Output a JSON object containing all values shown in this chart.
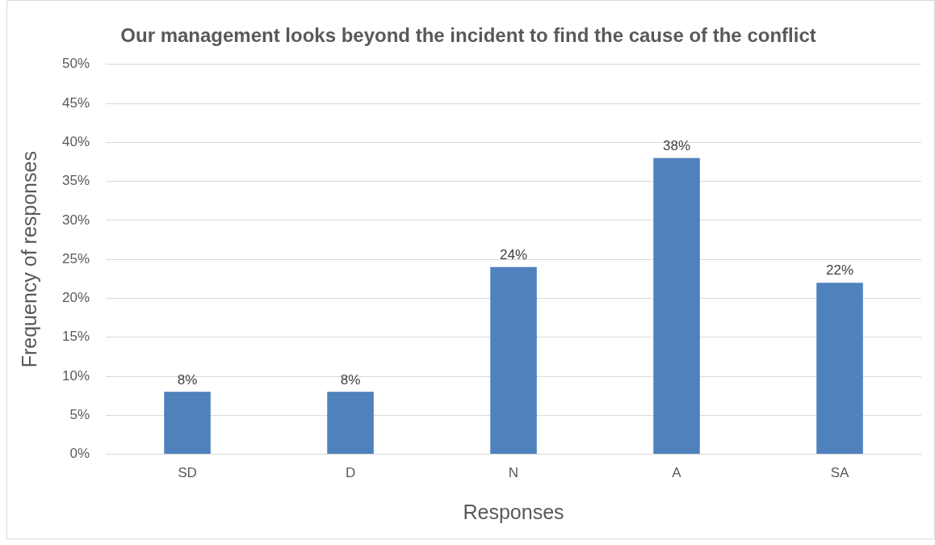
{
  "chart_data": {
    "type": "bar",
    "title": "Our management looks beyond the incident to find the cause of the conflict",
    "xlabel": "Responses",
    "ylabel": "Frequency of responses",
    "categories": [
      "SD",
      "D",
      "N",
      "A",
      "SA"
    ],
    "values": [
      8,
      8,
      24,
      38,
      22
    ],
    "value_labels": [
      "8%",
      "8%",
      "24%",
      "38%",
      "22%"
    ],
    "color": "#4f81bd",
    "ylim": [
      0,
      50
    ],
    "yticks": [
      {
        "value": 0,
        "label": "0%"
      },
      {
        "value": 5,
        "label": "5%"
      },
      {
        "value": 10,
        "label": "10%"
      },
      {
        "value": 15,
        "label": "15%"
      },
      {
        "value": 20,
        "label": "20%"
      },
      {
        "value": 25,
        "label": "25%"
      },
      {
        "value": 30,
        "label": "30%"
      },
      {
        "value": 35,
        "label": "35%"
      },
      {
        "value": 40,
        "label": "40%"
      },
      {
        "value": 45,
        "label": "45%"
      },
      {
        "value": 50,
        "label": "50%"
      }
    ],
    "grid": "y",
    "legend": false
  }
}
